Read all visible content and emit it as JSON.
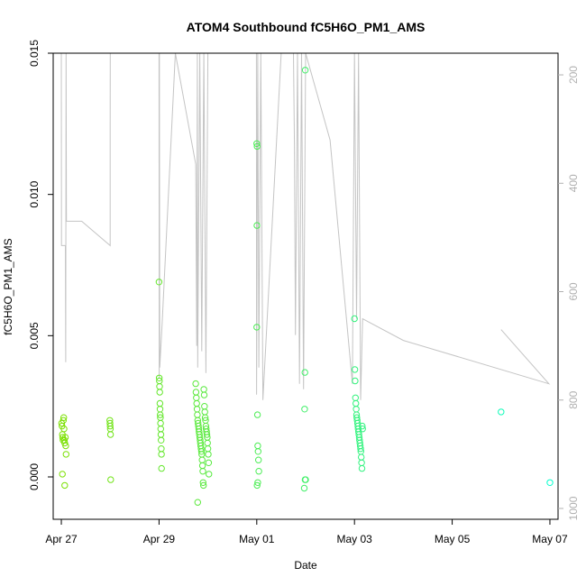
{
  "chart_data": {
    "type": "scatter",
    "title": "ATOM4 Southbound fC5H6O_PM1_AMS",
    "xlabel": "Date",
    "ylabel": "fC5H6O_PM1_AMS",
    "xlim": [
      "2017-04-26T20:00",
      "2017-05-07T04:00"
    ],
    "ylim": [
      -0.0015,
      0.015
    ],
    "x_ticks": [
      {
        "value": "2017-04-27T00:00",
        "label": "Apr 27"
      },
      {
        "value": "2017-04-29T00:00",
        "label": "Apr 29"
      },
      {
        "value": "2017-05-01T00:00",
        "label": "May 01"
      },
      {
        "value": "2017-05-03T00:00",
        "label": "May 03"
      },
      {
        "value": "2017-05-05T00:00",
        "label": "May 05"
      },
      {
        "value": "2017-05-07T00:00",
        "label": "May 07"
      }
    ],
    "y_ticks": [
      {
        "value": 0.0,
        "label": "0.000"
      },
      {
        "value": 0.005,
        "label": "0.005"
      },
      {
        "value": 0.01,
        "label": "0.010"
      },
      {
        "value": 0.015,
        "label": "0.015"
      }
    ],
    "secondary_axis": {
      "side": "right",
      "reversed": true,
      "lim": [
        1020,
        160
      ],
      "color": "#b0b0b0",
      "ticks": [
        {
          "value": 200,
          "label": "200"
        },
        {
          "value": 400,
          "label": "400"
        },
        {
          "value": 600,
          "label": "600"
        },
        {
          "value": 800,
          "label": "800"
        },
        {
          "value": 1000,
          "label": "1000"
        }
      ]
    },
    "grid": false,
    "legend": "none",
    "point_color_gradient": [
      "#7fe000",
      "#00ffd0"
    ],
    "trace": {
      "color": "#c4c4c4",
      "points": [
        [
          "2017-04-27T00:00",
          160
        ],
        [
          "2017-04-27T00:05",
          515
        ],
        [
          "2017-04-27T00:50",
          515
        ],
        [
          "2017-04-27T02:00",
          515
        ],
        [
          "2017-04-27T02:10",
          730
        ],
        [
          "2017-04-27T02:20",
          160
        ],
        [
          "2017-04-27T02:30",
          470
        ],
        [
          "2017-04-27T10:00",
          470
        ],
        [
          "2017-04-27T23:59",
          515
        ],
        [
          "2017-04-28T00:00",
          290
        ],
        [
          "2017-04-28T00:01",
          160
        ],
        [
          "2017-04-29T00:00",
          160
        ],
        [
          "2017-04-29T00:05",
          760
        ],
        [
          "2017-04-29T00:10",
          160
        ],
        [
          "2017-04-29T00:20",
          740
        ],
        [
          "2017-04-29T01:30",
          660
        ],
        [
          "2017-04-29T08:00",
          160
        ],
        [
          "2017-04-29T18:00",
          365
        ],
        [
          "2017-04-29T18:30",
          700
        ],
        [
          "2017-04-29T18:50",
          160
        ],
        [
          "2017-04-29T19:00",
          740
        ],
        [
          "2017-04-29T20:00",
          160
        ],
        [
          "2017-04-29T21:00",
          710
        ],
        [
          "2017-04-29T22:00",
          160
        ],
        [
          "2017-04-29T23:00",
          750
        ],
        [
          "2017-04-29T23:59",
          160
        ],
        [
          "2017-04-30T23:50",
          160
        ],
        [
          "2017-04-30T23:55",
          790
        ],
        [
          "2017-05-01T00:30",
          160
        ],
        [
          "2017-05-01T01:00",
          740
        ],
        [
          "2017-05-01T02:00",
          160
        ],
        [
          "2017-05-01T03:00",
          800
        ],
        [
          "2017-05-01T12:00",
          160
        ],
        [
          "2017-05-01T18:00",
          160
        ],
        [
          "2017-05-01T18:30",
          330
        ],
        [
          "2017-05-01T19:00",
          680
        ],
        [
          "2017-05-01T20:00",
          160
        ],
        [
          "2017-05-01T21:00",
          770
        ],
        [
          "2017-05-01T22:00",
          160
        ],
        [
          "2017-05-01T23:00",
          780
        ],
        [
          "2017-05-02T00:00",
          160
        ],
        [
          "2017-05-02T12:00",
          320
        ],
        [
          "2017-05-02T23:00",
          770
        ],
        [
          "2017-05-03T00:00",
          160
        ],
        [
          "2017-05-03T01:00",
          650
        ],
        [
          "2017-05-03T02:00",
          160
        ],
        [
          "2017-05-03T03:00",
          800
        ],
        [
          "2017-05-03T04:00",
          650
        ],
        [
          "2017-05-04T00:00",
          690
        ],
        [
          "2017-05-06T23:30",
          770
        ],
        [
          "2017-05-06T00:00",
          670
        ]
      ]
    },
    "series": [
      {
        "values": [
          [
            "2017-04-27T00:10",
            0.0019
          ],
          [
            "2017-04-27T00:20",
            0.0018
          ],
          [
            "2017-04-27T00:30",
            0.0015
          ],
          [
            "2017-04-27T00:40",
            0.0014
          ],
          [
            "2017-04-27T00:50",
            0.0013
          ],
          [
            "2017-04-27T01:00",
            0.002
          ],
          [
            "2017-04-27T01:10",
            0.0021
          ],
          [
            "2017-04-27T01:20",
            0.0017
          ],
          [
            "2017-04-27T01:30",
            0.0013
          ],
          [
            "2017-04-27T01:40",
            0.0012
          ],
          [
            "2017-04-27T02:00",
            0.0014
          ],
          [
            "2017-04-27T02:10",
            0.0011
          ],
          [
            "2017-04-27T02:20",
            0.0008
          ],
          [
            "2017-04-27T00:30",
            0.0001
          ],
          [
            "2017-04-27T01:40",
            -0.0003
          ],
          [
            "2017-04-27T23:50",
            0.002
          ],
          [
            "2017-04-27T23:55",
            0.0019
          ],
          [
            "2017-04-28T00:00",
            0.0018
          ],
          [
            "2017-04-28T00:05",
            0.0017
          ],
          [
            "2017-04-28T00:10",
            0.0015
          ],
          [
            "2017-04-28T00:15",
            -0.0001
          ],
          [
            "2017-04-29T00:00",
            0.0069
          ],
          [
            "2017-04-29T00:05",
            0.0035
          ],
          [
            "2017-04-29T00:10",
            0.0034
          ],
          [
            "2017-04-29T00:15",
            0.0032
          ],
          [
            "2017-04-29T00:20",
            0.003
          ],
          [
            "2017-04-29T00:25",
            0.0026
          ],
          [
            "2017-04-29T00:30",
            0.0024
          ],
          [
            "2017-04-29T00:35",
            0.0022
          ],
          [
            "2017-04-29T00:40",
            0.0021
          ],
          [
            "2017-04-29T00:45",
            0.0019
          ],
          [
            "2017-04-29T00:50",
            0.0017
          ],
          [
            "2017-04-29T00:55",
            0.0015
          ],
          [
            "2017-04-29T01:00",
            0.0013
          ],
          [
            "2017-04-29T01:05",
            0.001
          ],
          [
            "2017-04-29T01:10",
            0.0008
          ],
          [
            "2017-04-29T01:15",
            0.0003
          ],
          [
            "2017-04-29T18:00",
            0.0033
          ],
          [
            "2017-04-29T18:10",
            0.003
          ],
          [
            "2017-04-29T18:20",
            0.0028
          ],
          [
            "2017-04-29T18:30",
            0.0026
          ],
          [
            "2017-04-29T18:40",
            0.0024
          ],
          [
            "2017-04-29T18:50",
            0.0022
          ],
          [
            "2017-04-29T19:00",
            0.002
          ],
          [
            "2017-04-29T19:10",
            0.0019
          ],
          [
            "2017-04-29T19:20",
            0.0018
          ],
          [
            "2017-04-29T19:30",
            0.0017
          ],
          [
            "2017-04-29T19:40",
            0.0016
          ],
          [
            "2017-04-29T19:50",
            0.0015
          ],
          [
            "2017-04-29T20:00",
            0.0014
          ],
          [
            "2017-04-29T20:10",
            0.0013
          ],
          [
            "2017-04-29T20:20",
            0.0012
          ],
          [
            "2017-04-29T20:30",
            0.0011
          ],
          [
            "2017-04-29T20:40",
            0.001
          ],
          [
            "2017-04-29T20:50",
            0.0009
          ],
          [
            "2017-04-29T21:00",
            0.0008
          ],
          [
            "2017-04-29T21:10",
            0.0006
          ],
          [
            "2017-04-29T21:20",
            0.0004
          ],
          [
            "2017-04-29T21:30",
            0.0002
          ],
          [
            "2017-04-29T21:40",
            -0.0002
          ],
          [
            "2017-04-29T21:50",
            -0.0003
          ],
          [
            "2017-04-29T19:00",
            -0.0009
          ],
          [
            "2017-04-29T22:00",
            0.0031
          ],
          [
            "2017-04-29T22:10",
            0.0029
          ],
          [
            "2017-04-29T22:20",
            0.0025
          ],
          [
            "2017-04-29T22:30",
            0.0023
          ],
          [
            "2017-04-29T22:40",
            0.0021
          ],
          [
            "2017-04-29T22:50",
            0.002
          ],
          [
            "2017-04-29T23:00",
            0.0018
          ],
          [
            "2017-04-29T23:10",
            0.0017
          ],
          [
            "2017-04-29T23:20",
            0.0016
          ],
          [
            "2017-04-29T23:30",
            0.0015
          ],
          [
            "2017-04-29T23:40",
            0.0014
          ],
          [
            "2017-04-29T23:50",
            0.0012
          ],
          [
            "2017-04-30T00:00",
            0.001
          ],
          [
            "2017-04-30T00:10",
            0.0008
          ],
          [
            "2017-04-30T00:20",
            0.0005
          ],
          [
            "2017-04-30T00:30",
            0.0001
          ],
          [
            "2017-05-01T00:00",
            0.0118
          ],
          [
            "2017-05-01T00:10",
            0.0117
          ],
          [
            "2017-05-01T00:05",
            0.0089
          ],
          [
            "2017-05-01T00:00",
            0.0053
          ],
          [
            "2017-05-01T00:20",
            0.0022
          ],
          [
            "2017-05-01T00:30",
            0.0011
          ],
          [
            "2017-05-01T00:40",
            0.0009
          ],
          [
            "2017-05-01T00:50",
            0.0006
          ],
          [
            "2017-05-01T01:00",
            0.0002
          ],
          [
            "2017-05-01T00:30",
            -0.0002
          ],
          [
            "2017-05-01T00:10",
            -0.0003
          ],
          [
            "2017-05-01T23:50",
            0.0144
          ],
          [
            "2017-05-01T23:40",
            0.0037
          ],
          [
            "2017-05-01T23:30",
            0.0024
          ],
          [
            "2017-05-01T23:45",
            -0.0001
          ],
          [
            "2017-05-02T00:00",
            -0.0001
          ],
          [
            "2017-05-01T23:20",
            -0.0004
          ],
          [
            "2017-05-03T00:00",
            0.0056
          ],
          [
            "2017-05-03T00:10",
            0.0038
          ],
          [
            "2017-05-03T00:20",
            0.0034
          ],
          [
            "2017-05-03T00:30",
            0.0028
          ],
          [
            "2017-05-03T00:40",
            0.0026
          ],
          [
            "2017-05-03T00:50",
            0.0024
          ],
          [
            "2017-05-03T01:00",
            0.0022
          ],
          [
            "2017-05-03T01:10",
            0.0021
          ],
          [
            "2017-05-03T01:20",
            0.002
          ],
          [
            "2017-05-03T01:30",
            0.0019
          ],
          [
            "2017-05-03T01:40",
            0.0018
          ],
          [
            "2017-05-03T01:50",
            0.0017
          ],
          [
            "2017-05-03T02:00",
            0.0016
          ],
          [
            "2017-05-03T02:10",
            0.0015
          ],
          [
            "2017-05-03T02:20",
            0.0014
          ],
          [
            "2017-05-03T02:30",
            0.0013
          ],
          [
            "2017-05-03T02:40",
            0.0012
          ],
          [
            "2017-05-03T02:50",
            0.0011
          ],
          [
            "2017-05-03T03:00",
            0.001
          ],
          [
            "2017-05-03T03:10",
            0.0009
          ],
          [
            "2017-05-03T03:20",
            0.0007
          ],
          [
            "2017-05-03T03:30",
            0.0005
          ],
          [
            "2017-05-03T03:40",
            0.0003
          ],
          [
            "2017-05-03T03:50",
            0.0018
          ],
          [
            "2017-05-03T04:00",
            0.0017
          ],
          [
            "2017-05-06T00:00",
            0.0023
          ],
          [
            "2017-05-07T00:00",
            -0.0002
          ]
        ]
      }
    ]
  }
}
